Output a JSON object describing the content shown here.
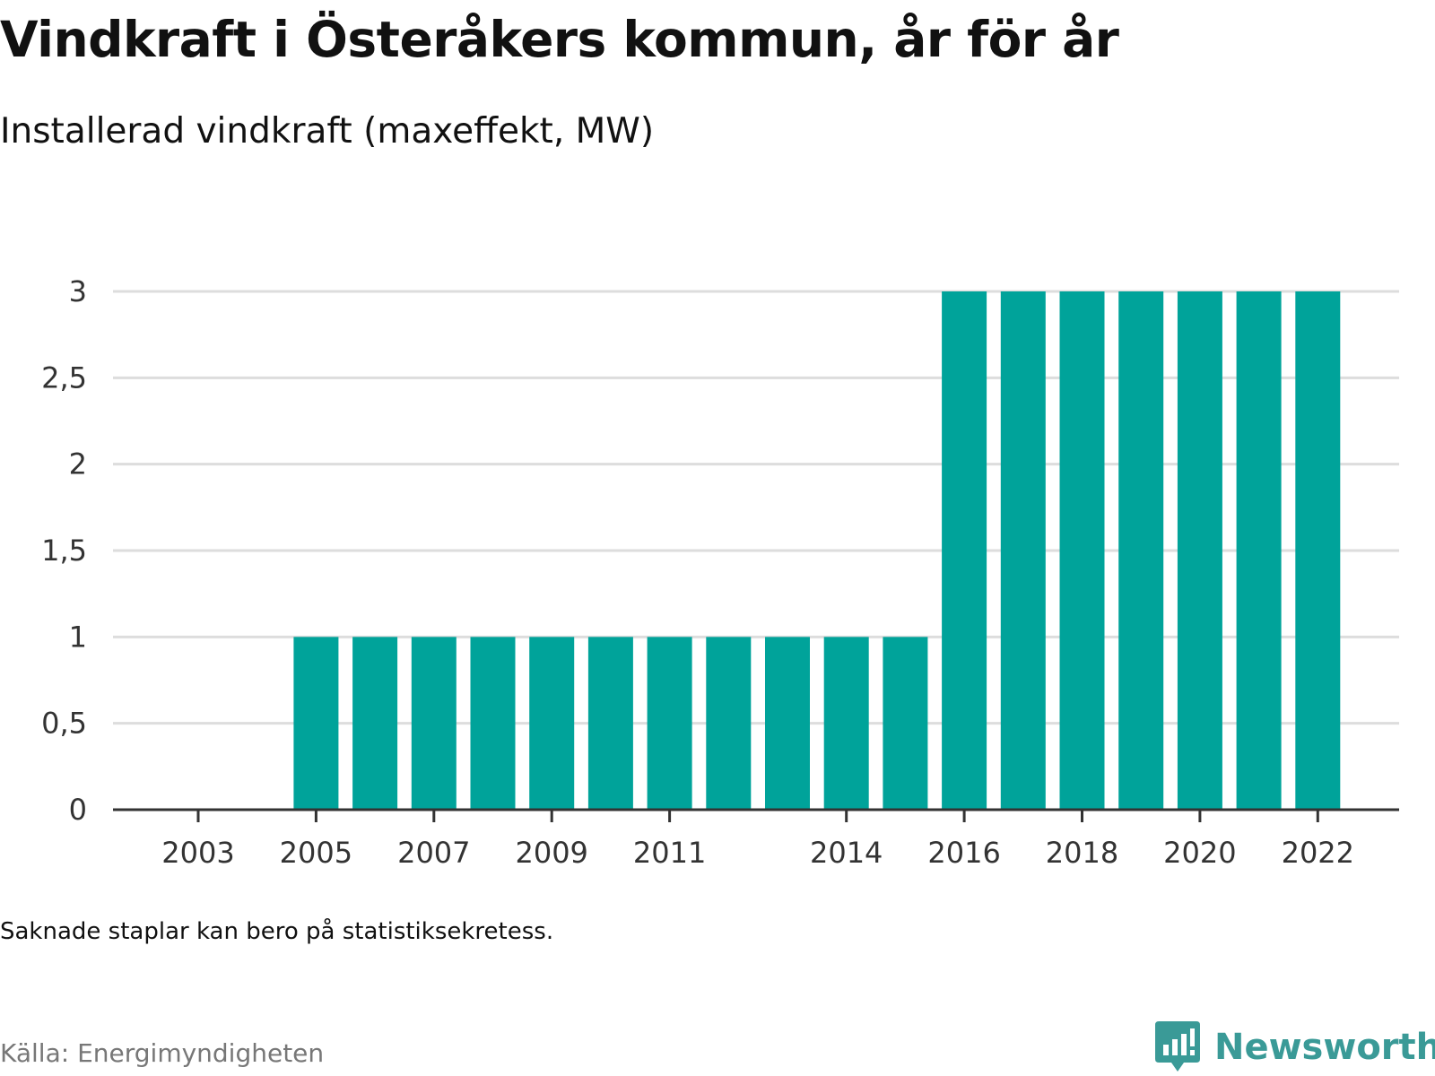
{
  "title": "Vindkraft i Österåkers kommun, år för år",
  "subtitle": "Installerad vindkraft (maxeffekt, MW)",
  "note": "Saknade staplar kan bero på statistiksekretess.",
  "source": "Källa: Energimyndigheten",
  "brand": {
    "name": "Newsworthy",
    "icon": "bar-chart-speech-bubble-icon",
    "color": "#3a9a97"
  },
  "colors": {
    "bar": "#00a39a",
    "grid": "#dddddd",
    "axis": "#333333"
  },
  "chart_data": {
    "type": "bar",
    "categories": [
      "2003",
      "2004",
      "2005",
      "2006",
      "2007",
      "2008",
      "2009",
      "2010",
      "2011",
      "2012",
      "2013",
      "2014",
      "2015",
      "2016",
      "2017",
      "2018",
      "2019",
      "2020",
      "2021",
      "2022"
    ],
    "values": [
      null,
      null,
      1,
      1,
      1,
      1,
      1,
      1,
      1,
      1,
      1,
      1,
      1,
      3,
      3,
      3,
      3,
      3,
      3,
      3
    ],
    "x_tick_labels": [
      "2003",
      "2005",
      "2007",
      "2009",
      "2011",
      "2014",
      "2016",
      "2018",
      "2020",
      "2022"
    ],
    "y_ticks": [
      0,
      0.5,
      1,
      1.5,
      2,
      2.5,
      3
    ],
    "y_tick_labels": [
      "0",
      "0,5",
      "1",
      "1,5",
      "2",
      "2,5",
      "3"
    ],
    "ylim": [
      0,
      3
    ],
    "grid": true,
    "legend": "none"
  }
}
